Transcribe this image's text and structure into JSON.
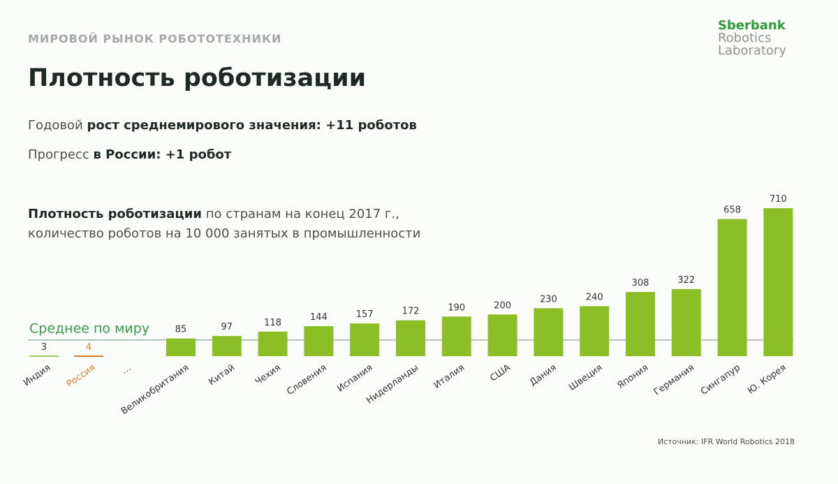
{
  "header": {
    "kicker": "МИРОВОЙ РЫНОК РОБОТОТЕХНИКИ",
    "title": "Плотность роботизации",
    "line1_normal": "Годовой ",
    "line1_bold": "рост среднемирового значения: +11 роботов",
    "line2_normal": "Прогресс ",
    "line2_bold": "в России: +1 робот"
  },
  "logo": {
    "line1": "Sberbank",
    "line2": "Robotics",
    "line3": "Laboratory"
  },
  "source": "Источник: IFR World Robotics 2018",
  "colors": {
    "bar": "#8cbf26",
    "average": "#3a9a4a",
    "russia": "#e07b2e",
    "india": "#9ccc5a"
  },
  "chart_data": {
    "type": "bar",
    "subtitle_bold": "Плотность роботизации",
    "subtitle_rest": " по странам на конец 2017 г.,",
    "subtitle_line2": "количество роботов на 10 000 занятых в промышленности",
    "average_label": "Среднее по миру",
    "average_value_approx": 78,
    "gap_label": "...",
    "low_categories": [
      "Индия",
      "Россия"
    ],
    "low_values": [
      3,
      4
    ],
    "categories": [
      "Великобритания",
      "Китай",
      "Чехия",
      "Словения",
      "Испания",
      "Нидерланды",
      "Италия",
      "США",
      "Дания",
      "Швеция",
      "Япония",
      "Германия",
      "Сингапур",
      "Ю. Корея"
    ],
    "values": [
      85,
      97,
      118,
      144,
      157,
      172,
      190,
      200,
      230,
      240,
      308,
      322,
      658,
      710
    ]
  }
}
